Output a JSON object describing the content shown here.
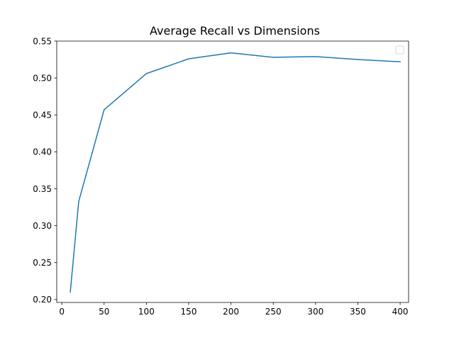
{
  "chart_data": {
    "type": "line",
    "title": "Average Recall vs Dimensions",
    "xlabel": "",
    "ylabel": "",
    "xlim": [
      -6,
      410
    ],
    "ylim": [
      0.196,
      0.55
    ],
    "x_ticks": [
      0,
      50,
      100,
      150,
      200,
      250,
      300,
      350,
      400
    ],
    "x_tick_labels": [
      "0",
      "50",
      "100",
      "150",
      "200",
      "250",
      "300",
      "350",
      "400"
    ],
    "y_ticks": [
      0.2,
      0.25,
      0.3,
      0.35,
      0.4,
      0.45,
      0.5,
      0.55
    ],
    "y_tick_labels": [
      "0.20",
      "0.25",
      "0.30",
      "0.35",
      "0.40",
      "0.45",
      "0.50",
      "0.55"
    ],
    "grid": false,
    "legend": {
      "placement": "top-right",
      "entries": []
    },
    "series": [
      {
        "color": "#1f77b4",
        "x": [
          10,
          20,
          50,
          100,
          150,
          200,
          250,
          300,
          350,
          400
        ],
        "y": [
          0.21,
          0.333,
          0.457,
          0.506,
          0.526,
          0.534,
          0.528,
          0.529,
          0.525,
          0.522
        ]
      }
    ]
  }
}
